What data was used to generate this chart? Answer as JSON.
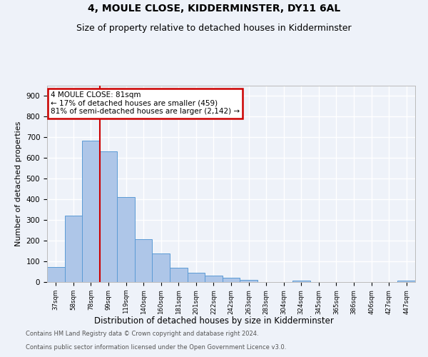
{
  "title1": "4, MOULE CLOSE, KIDDERMINSTER, DY11 6AL",
  "title2": "Size of property relative to detached houses in Kidderminster",
  "xlabel": "Distribution of detached houses by size in Kidderminster",
  "ylabel": "Number of detached properties",
  "footer1": "Contains HM Land Registry data © Crown copyright and database right 2024.",
  "footer2": "Contains public sector information licensed under the Open Government Licence v3.0.",
  "categories": [
    "37sqm",
    "58sqm",
    "78sqm",
    "99sqm",
    "119sqm",
    "140sqm",
    "160sqm",
    "181sqm",
    "201sqm",
    "222sqm",
    "242sqm",
    "263sqm",
    "283sqm",
    "304sqm",
    "324sqm",
    "345sqm",
    "365sqm",
    "386sqm",
    "406sqm",
    "427sqm",
    "447sqm"
  ],
  "values": [
    72,
    320,
    683,
    632,
    410,
    207,
    137,
    68,
    46,
    32,
    22,
    12,
    0,
    0,
    8,
    0,
    0,
    0,
    0,
    0,
    8
  ],
  "bar_color": "#aec6e8",
  "bar_edge_color": "#5b9bd5",
  "annotation_marker_label": "4 MOULE CLOSE: 81sqm",
  "annotation_line1": "← 17% of detached houses are smaller (459)",
  "annotation_line2": "81% of semi-detached houses are larger (2,142) →",
  "annotation_box_color": "#cc0000",
  "vline_position": 2.5,
  "ylim": [
    0,
    950
  ],
  "yticks": [
    0,
    100,
    200,
    300,
    400,
    500,
    600,
    700,
    800,
    900
  ],
  "bg_color": "#eef2f9",
  "plot_bg_color": "#eef2f9",
  "grid_color": "#ffffff",
  "title1_fontsize": 10,
  "title2_fontsize": 9,
  "xlabel_fontsize": 8.5,
  "ylabel_fontsize": 8
}
